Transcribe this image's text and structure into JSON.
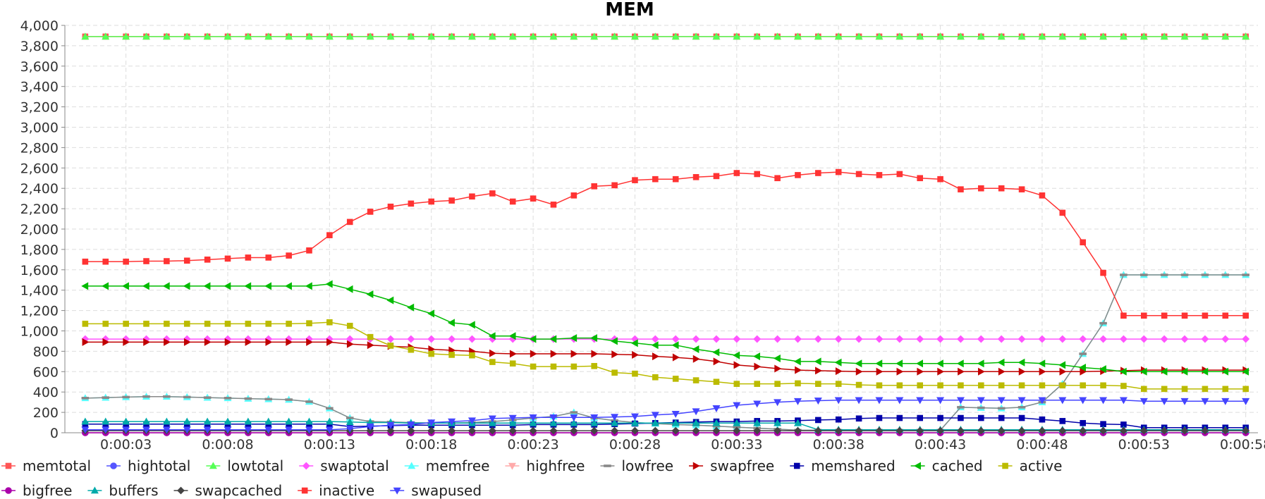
{
  "chart_data": {
    "type": "line",
    "title": "MEM",
    "xlabel": "",
    "ylabel": "",
    "ylim": [
      0,
      4000
    ],
    "yticks": [
      0,
      200,
      400,
      600,
      800,
      1000,
      1200,
      1400,
      1600,
      1800,
      2000,
      2200,
      2400,
      2600,
      2800,
      3000,
      3200,
      3400,
      3600,
      3800,
      4000
    ],
    "ytick_labels": [
      "0",
      "200",
      "400",
      "600",
      "800",
      "1,000",
      "1,200",
      "1,400",
      "1,600",
      "1,800",
      "2,000",
      "2,200",
      "2,400",
      "2,600",
      "2,800",
      "3,000",
      "3,200",
      "3,400",
      "3,600",
      "3,800",
      "4,000"
    ],
    "x_seconds": [
      1,
      2,
      3,
      4,
      5,
      6,
      7,
      8,
      9,
      10,
      11,
      12,
      13,
      14,
      15,
      16,
      17,
      18,
      19,
      20,
      21,
      22,
      23,
      24,
      25,
      26,
      27,
      28,
      29,
      30,
      31,
      32,
      33,
      34,
      35,
      36,
      37,
      38,
      39,
      40,
      41,
      42,
      43,
      44,
      45,
      46,
      47,
      48,
      49,
      50,
      51,
      52,
      53,
      54,
      55,
      56,
      57,
      58
    ],
    "xlim": [
      0,
      58.6
    ],
    "xticks": [
      3,
      8,
      13,
      18,
      23,
      28,
      33,
      38,
      43,
      48,
      53,
      58
    ],
    "xtick_labels": [
      "0:00:03",
      "0:00:08",
      "0:00:13",
      "0:00:18",
      "0:00:23",
      "0:00:28",
      "0:00:33",
      "0:00:38",
      "0:00:43",
      "0:00:48",
      "0:00:53",
      "0:00:58"
    ],
    "grid": true,
    "legend_position": "bottom",
    "series": [
      {
        "name": "memtotal",
        "color": "#ff5555",
        "marker": "square",
        "values": [
          3890,
          3890,
          3890,
          3890,
          3890,
          3890,
          3890,
          3890,
          3890,
          3890,
          3890,
          3890,
          3890,
          3890,
          3890,
          3890,
          3890,
          3890,
          3890,
          3890,
          3890,
          3890,
          3890,
          3890,
          3890,
          3890,
          3890,
          3890,
          3890,
          3890,
          3890,
          3890,
          3890,
          3890,
          3890,
          3890,
          3890,
          3890,
          3890,
          3890,
          3890,
          3890,
          3890,
          3890,
          3890,
          3890,
          3890,
          3890,
          3890,
          3890,
          3890,
          3890,
          3890,
          3890,
          3890,
          3890,
          3890,
          3890
        ]
      },
      {
        "name": "hightotal",
        "color": "#5555ff",
        "marker": "circle",
        "values": [
          0,
          0,
          0,
          0,
          0,
          0,
          0,
          0,
          0,
          0,
          0,
          0,
          0,
          0,
          0,
          0,
          0,
          0,
          0,
          0,
          0,
          0,
          0,
          0,
          0,
          0,
          0,
          0,
          0,
          0,
          0,
          0,
          0,
          0,
          0,
          0,
          0,
          0,
          0,
          0,
          0,
          0,
          0,
          0,
          0,
          0,
          0,
          0,
          0,
          0,
          0,
          0,
          0,
          0,
          0,
          0,
          0,
          0
        ]
      },
      {
        "name": "lowtotal",
        "color": "#55ff55",
        "marker": "triangle-up",
        "values": [
          3890,
          3890,
          3890,
          3890,
          3890,
          3890,
          3890,
          3890,
          3890,
          3890,
          3890,
          3890,
          3890,
          3890,
          3890,
          3890,
          3890,
          3890,
          3890,
          3890,
          3890,
          3890,
          3890,
          3890,
          3890,
          3890,
          3890,
          3890,
          3890,
          3890,
          3890,
          3890,
          3890,
          3890,
          3890,
          3890,
          3890,
          3890,
          3890,
          3890,
          3890,
          3890,
          3890,
          3890,
          3890,
          3890,
          3890,
          3890,
          3890,
          3890,
          3890,
          3890,
          3890,
          3890,
          3890,
          3890,
          3890,
          3890
        ]
      },
      {
        "name": "swaptotal",
        "color": "#ff55ff",
        "marker": "diamond",
        "values": [
          920,
          920,
          920,
          920,
          920,
          920,
          920,
          920,
          920,
          920,
          920,
          920,
          920,
          920,
          920,
          920,
          920,
          920,
          920,
          920,
          920,
          920,
          920,
          920,
          920,
          920,
          920,
          920,
          920,
          920,
          920,
          920,
          920,
          920,
          920,
          920,
          920,
          920,
          920,
          920,
          920,
          920,
          920,
          920,
          920,
          920,
          920,
          920,
          920,
          920,
          920,
          920,
          920,
          920,
          920,
          920,
          920,
          920
        ]
      },
      {
        "name": "memfree",
        "color": "#55ffff",
        "marker": "triangle-up",
        "values": [
          340,
          345,
          350,
          355,
          355,
          350,
          345,
          340,
          335,
          330,
          325,
          305,
          240,
          145,
          110,
          105,
          100,
          95,
          95,
          100,
          110,
          125,
          145,
          160,
          200,
          145,
          120,
          100,
          90,
          80,
          75,
          65,
          55,
          45,
          35,
          25,
          25,
          25,
          25,
          25,
          25,
          25,
          25,
          250,
          245,
          240,
          250,
          300,
          480,
          775,
          1075,
          1550,
          1550,
          1550,
          1550,
          1550,
          1550,
          1550
        ]
      },
      {
        "name": "highfree",
        "color": "#ffaaaa",
        "marker": "triangle-down",
        "values": [
          0,
          0,
          0,
          0,
          0,
          0,
          0,
          0,
          0,
          0,
          0,
          0,
          0,
          0,
          0,
          0,
          0,
          0,
          0,
          0,
          0,
          0,
          0,
          0,
          0,
          0,
          0,
          0,
          0,
          0,
          0,
          0,
          0,
          0,
          0,
          0,
          0,
          0,
          0,
          0,
          0,
          0,
          0,
          0,
          0,
          0,
          0,
          0,
          0,
          0,
          0,
          0,
          0,
          0,
          0,
          0,
          0,
          0
        ]
      },
      {
        "name": "lowfree",
        "color": "#888888",
        "marker": "dash",
        "values": [
          340,
          345,
          350,
          355,
          355,
          350,
          345,
          340,
          335,
          330,
          325,
          305,
          240,
          145,
          110,
          105,
          100,
          95,
          95,
          100,
          110,
          125,
          145,
          160,
          200,
          145,
          120,
          100,
          90,
          80,
          75,
          65,
          55,
          45,
          35,
          25,
          25,
          25,
          25,
          25,
          25,
          25,
          25,
          250,
          245,
          240,
          250,
          300,
          480,
          775,
          1075,
          1550,
          1550,
          1550,
          1550,
          1550,
          1550,
          1550
        ]
      },
      {
        "name": "swapfree",
        "color": "#c00000",
        "marker": "triangle-right",
        "values": [
          890,
          890,
          890,
          890,
          890,
          890,
          890,
          890,
          890,
          890,
          890,
          890,
          890,
          870,
          860,
          850,
          840,
          820,
          810,
          800,
          780,
          775,
          775,
          775,
          775,
          775,
          770,
          765,
          750,
          740,
          725,
          700,
          665,
          650,
          630,
          615,
          610,
          605,
          600,
          600,
          600,
          600,
          600,
          600,
          600,
          600,
          600,
          600,
          600,
          600,
          605,
          610,
          615,
          615,
          615,
          615,
          615,
          615
        ]
      },
      {
        "name": "memshared",
        "color": "#0000aa",
        "marker": "square",
        "values": [
          85,
          85,
          85,
          85,
          85,
          85,
          85,
          85,
          85,
          85,
          85,
          85,
          85,
          60,
          65,
          70,
          75,
          75,
          75,
          75,
          75,
          75,
          80,
          80,
          80,
          80,
          85,
          90,
          95,
          100,
          105,
          110,
          110,
          115,
          115,
          120,
          125,
          130,
          140,
          145,
          145,
          145,
          145,
          145,
          145,
          145,
          145,
          130,
          115,
          95,
          85,
          80,
          50,
          50,
          50,
          50,
          50,
          50
        ]
      },
      {
        "name": "cached",
        "color": "#00bb00",
        "marker": "triangle-left",
        "values": [
          1440,
          1440,
          1440,
          1440,
          1440,
          1440,
          1440,
          1440,
          1440,
          1440,
          1440,
          1440,
          1460,
          1410,
          1360,
          1300,
          1230,
          1170,
          1080,
          1060,
          950,
          950,
          920,
          920,
          930,
          930,
          900,
          880,
          860,
          860,
          820,
          790,
          760,
          750,
          730,
          700,
          700,
          690,
          680,
          680,
          680,
          680,
          680,
          680,
          680,
          690,
          690,
          680,
          665,
          640,
          625,
          600,
          600,
          600,
          600,
          600,
          600,
          600
        ]
      },
      {
        "name": "active",
        "color": "#bbbb00",
        "marker": "square",
        "values": [
          1070,
          1070,
          1070,
          1070,
          1070,
          1070,
          1070,
          1070,
          1070,
          1070,
          1070,
          1075,
          1085,
          1050,
          940,
          855,
          815,
          775,
          765,
          760,
          695,
          680,
          650,
          650,
          650,
          655,
          590,
          580,
          545,
          530,
          515,
          500,
          480,
          480,
          480,
          485,
          480,
          480,
          470,
          465,
          465,
          465,
          465,
          465,
          465,
          465,
          465,
          465,
          465,
          465,
          465,
          460,
          430,
          430,
          430,
          430,
          430,
          430
        ]
      },
      {
        "name": "bigfree",
        "color": "#aa00aa",
        "marker": "circle",
        "values": [
          0,
          0,
          0,
          0,
          0,
          0,
          0,
          0,
          0,
          0,
          0,
          0,
          0,
          0,
          0,
          0,
          0,
          0,
          0,
          0,
          0,
          0,
          0,
          0,
          0,
          0,
          0,
          0,
          0,
          0,
          0,
          0,
          0,
          0,
          0,
          0,
          0,
          0,
          0,
          0,
          0,
          0,
          0,
          0,
          0,
          0,
          0,
          0,
          0,
          0,
          0,
          0,
          0,
          0,
          0,
          0,
          0,
          0
        ]
      },
      {
        "name": "buffers",
        "color": "#00aaaa",
        "marker": "triangle-up",
        "values": [
          110,
          110,
          110,
          110,
          110,
          110,
          110,
          110,
          110,
          110,
          110,
          110,
          110,
          105,
          100,
          100,
          95,
          95,
          95,
          95,
          95,
          95,
          95,
          95,
          95,
          95,
          95,
          95,
          95,
          95,
          95,
          95,
          95,
          95,
          95,
          95,
          30,
          30,
          30,
          30,
          30,
          30,
          30,
          30,
          30,
          30,
          30,
          30,
          30,
          30,
          30,
          30,
          30,
          30,
          30,
          30,
          30,
          30
        ]
      },
      {
        "name": "swapcached",
        "color": "#444444",
        "marker": "diamond",
        "values": [
          20,
          20,
          20,
          20,
          20,
          20,
          20,
          20,
          20,
          20,
          20,
          20,
          20,
          20,
          20,
          20,
          20,
          20,
          20,
          20,
          20,
          20,
          20,
          20,
          20,
          20,
          20,
          20,
          20,
          20,
          20,
          20,
          20,
          20,
          20,
          20,
          20,
          20,
          20,
          20,
          20,
          20,
          20,
          20,
          20,
          20,
          20,
          20,
          20,
          20,
          20,
          20,
          20,
          20,
          20,
          20,
          20,
          20
        ]
      },
      {
        "name": "inactive",
        "color": "#ff3333",
        "marker": "square",
        "values": [
          1680,
          1680,
          1680,
          1685,
          1685,
          1690,
          1700,
          1710,
          1720,
          1720,
          1740,
          1790,
          1940,
          2070,
          2170,
          2220,
          2250,
          2270,
          2280,
          2320,
          2350,
          2270,
          2300,
          2240,
          2330,
          2420,
          2430,
          2480,
          2490,
          2490,
          2510,
          2520,
          2550,
          2540,
          2500,
          2530,
          2550,
          2560,
          2540,
          2530,
          2540,
          2500,
          2490,
          2390,
          2400,
          2400,
          2390,
          2330,
          2160,
          1870,
          1570,
          1150,
          1150,
          1150,
          1150,
          1150,
          1150,
          1150
        ]
      },
      {
        "name": "swapused",
        "color": "#4444ff",
        "marker": "triangle-down",
        "values": [
          30,
          30,
          30,
          30,
          30,
          30,
          30,
          30,
          30,
          30,
          30,
          30,
          30,
          40,
          60,
          75,
          80,
          100,
          110,
          120,
          140,
          145,
          150,
          150,
          150,
          150,
          155,
          160,
          175,
          185,
          210,
          240,
          270,
          285,
          300,
          310,
          315,
          320,
          320,
          320,
          320,
          320,
          320,
          320,
          320,
          320,
          320,
          320,
          320,
          320,
          320,
          320,
          310,
          310,
          310,
          310,
          310,
          310
        ]
      }
    ]
  }
}
